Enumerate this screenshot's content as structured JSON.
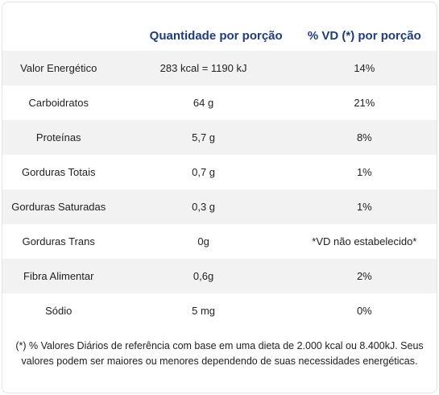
{
  "table": {
    "header": {
      "nutrient": "",
      "quantity": "Quantidade por porção",
      "daily_value": "% VD (*) por porção"
    },
    "rows": [
      {
        "nutrient": "Valor Energético",
        "quantity": "283 kcal = 1190 kJ",
        "daily_value": "14%"
      },
      {
        "nutrient": "Carboidratos",
        "quantity": "64 g",
        "daily_value": "21%"
      },
      {
        "nutrient": "Proteínas",
        "quantity": "5,7 g",
        "daily_value": "8%"
      },
      {
        "nutrient": "Gorduras Totais",
        "quantity": "0,7 g",
        "daily_value": "1%"
      },
      {
        "nutrient": "Gorduras Saturadas",
        "quantity": "0,3 g",
        "daily_value": "1%"
      },
      {
        "nutrient": "Gorduras Trans",
        "quantity": "0g",
        "daily_value": "*VD não estabelecido*"
      },
      {
        "nutrient": "Fibra Alimentar",
        "quantity": "0,6g",
        "daily_value": "2%"
      },
      {
        "nutrient": "Sódio",
        "quantity": "5 mg",
        "daily_value": "0%"
      }
    ],
    "footnote": "(*) % Valores Diários de referência com base em uma dieta de 2.000 kcal ou 8.400kJ. Seus valores podem ser maiores ou menores dependendo de suas necessidades energéticas."
  },
  "colors": {
    "header_text": "#1f3d7a",
    "stripe": "#f2f2f2",
    "border": "#e4e4e4"
  }
}
